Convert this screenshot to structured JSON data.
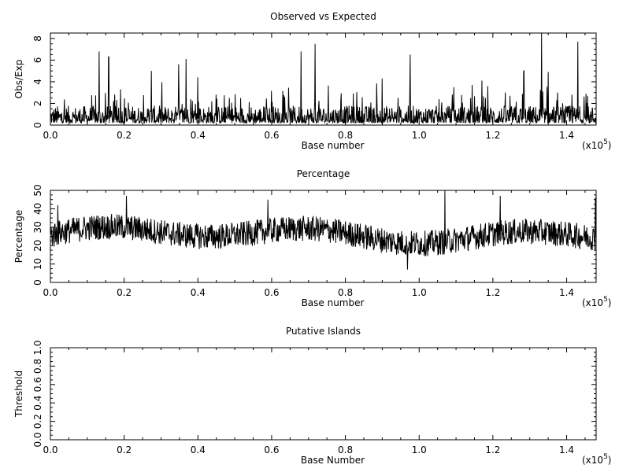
{
  "chart_data": [
    {
      "type": "line",
      "title": "Observed vs Expected",
      "xlabel": "Base number",
      "ylabel": "Obs/Exp",
      "x_scale_label": "(x10",
      "x_scale_exp": "5",
      "x_scale_close": ")",
      "xlim": [
        0,
        148000
      ],
      "ylim": [
        0,
        8.5
      ],
      "xticks": [
        0.0,
        0.2,
        0.4,
        0.6,
        0.8,
        1.0,
        1.2,
        1.4
      ],
      "xtick_labels": [
        "0.0",
        "0.2",
        "0.4",
        "0.6",
        "0.8",
        "1.0",
        "1.2",
        "1.4"
      ],
      "yticks": [
        0,
        2,
        4,
        6,
        8
      ],
      "ytick_labels": [
        "0",
        "2",
        "4",
        "6",
        "8"
      ],
      "series_note": "dense noisy trace",
      "signal": {
        "base": 1.0,
        "noise": 0.9,
        "spikes": [
          {
            "x": 13200,
            "y": 6.8
          },
          {
            "x": 15800,
            "y": 6.3
          },
          {
            "x": 34800,
            "y": 5.6
          },
          {
            "x": 36800,
            "y": 6.1
          },
          {
            "x": 68000,
            "y": 6.8
          },
          {
            "x": 71800,
            "y": 7.5
          },
          {
            "x": 97600,
            "y": 6.5
          },
          {
            "x": 117000,
            "y": 4.1
          },
          {
            "x": 133200,
            "y": 8.5
          },
          {
            "x": 135000,
            "y": 4.9
          },
          {
            "x": 143000,
            "y": 7.7
          },
          {
            "x": 128400,
            "y": 5.0
          },
          {
            "x": 90000,
            "y": 4.3
          },
          {
            "x": 27400,
            "y": 5.0
          },
          {
            "x": 40000,
            "y": 4.4
          }
        ]
      }
    },
    {
      "type": "line",
      "title": "Percentage",
      "xlabel": "Base number",
      "ylabel": "Percentage",
      "x_scale_label": "(x10",
      "x_scale_exp": "5",
      "x_scale_close": ")",
      "xlim": [
        0,
        148000
      ],
      "ylim": [
        0,
        50
      ],
      "xticks": [
        0.0,
        0.2,
        0.4,
        0.6,
        0.8,
        1.0,
        1.2,
        1.4
      ],
      "xtick_labels": [
        "0.0",
        "0.2",
        "0.4",
        "0.6",
        "0.8",
        "1.0",
        "1.2",
        "1.4"
      ],
      "yticks": [
        0,
        10,
        20,
        30,
        40,
        50
      ],
      "ytick_labels": [
        "0",
        "10",
        "20",
        "30",
        "40",
        "50"
      ],
      "signal": {
        "base": 26,
        "noise": 7,
        "spikes": [
          {
            "x": 20600,
            "y": 47
          },
          {
            "x": 107000,
            "y": 50
          },
          {
            "x": 122000,
            "y": 47
          },
          {
            "x": 147800,
            "y": 46
          },
          {
            "x": 96800,
            "y": 7
          },
          {
            "x": 59000,
            "y": 45
          },
          {
            "x": 2000,
            "y": 42
          }
        ]
      }
    },
    {
      "type": "line",
      "title": "Putative Islands",
      "xlabel": "Base Number",
      "ylabel": "Threshold",
      "x_scale_label": "(x10",
      "x_scale_exp": "5",
      "x_scale_close": ")",
      "xlim": [
        0,
        148000
      ],
      "ylim": [
        0,
        1.0
      ],
      "xticks": [
        0.0,
        0.2,
        0.4,
        0.6,
        0.8,
        1.0,
        1.2,
        1.4
      ],
      "xtick_labels": [
        "0.0",
        "0.2",
        "0.4",
        "0.6",
        "0.8",
        "1.0",
        "1.2",
        "1.4"
      ],
      "yticks": [
        0.0,
        0.2,
        0.4,
        0.6,
        0.8,
        1.0
      ],
      "ytick_labels": [
        "0.0",
        "0.2",
        "0.4",
        "0.6",
        "0.8",
        "1.0"
      ],
      "empty": true
    }
  ]
}
